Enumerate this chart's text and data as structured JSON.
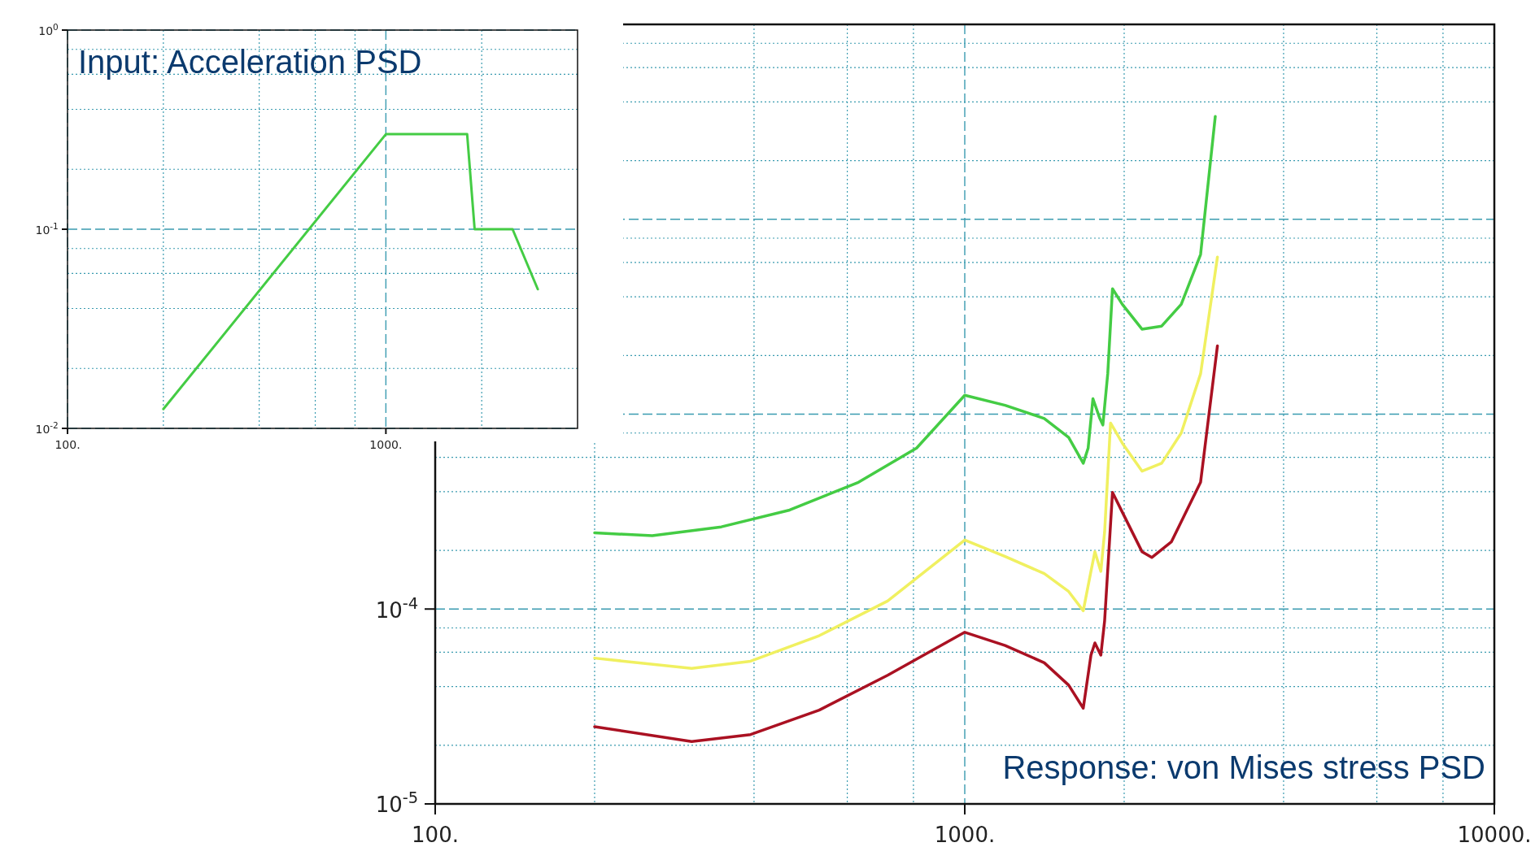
{
  "chart_data": [
    {
      "type": "line",
      "title": "Input: Acceleration PSD",
      "log": "xy",
      "grid": true,
      "xlim": [
        100,
        4000
      ],
      "ylim": [
        0.01,
        1
      ],
      "xticks": [
        {
          "value": 100,
          "label": "100."
        },
        {
          "value": 200,
          "label": null
        },
        {
          "value": 400,
          "label": null
        },
        {
          "value": 600,
          "label": null
        },
        {
          "value": 800,
          "label": null
        },
        {
          "value": 1000,
          "label": "1000."
        },
        {
          "value": 2000,
          "label": null
        }
      ],
      "yticks": [
        {
          "value": 0.01,
          "label": "10$^{-2}$"
        },
        {
          "value": 0.02,
          "label": null
        },
        {
          "value": 0.04,
          "label": null
        },
        {
          "value": 0.06,
          "label": null
        },
        {
          "value": 0.08,
          "label": null
        },
        {
          "value": 0.1,
          "label": "10$^{-1}$"
        },
        {
          "value": 0.2,
          "label": null
        },
        {
          "value": 0.4,
          "label": null
        },
        {
          "value": 0.6,
          "label": null
        },
        {
          "value": 0.8,
          "label": null
        },
        {
          "value": 1,
          "label": "10$^{0}$"
        }
      ],
      "series": [
        {
          "color": "#44cc44",
          "x": [
            200,
            1000,
            1800,
            1900,
            2500,
            3000
          ],
          "values": [
            0.0125,
            0.3,
            0.3,
            0.1,
            0.1,
            0.05
          ]
        }
      ]
    },
    {
      "type": "line",
      "title": "Response: von Mises stress PSD",
      "log": "xy",
      "grid": true,
      "xlim": [
        100,
        10000
      ],
      "ylim": [
        1e-05,
        0.1
      ],
      "xticks": [
        {
          "value": 100,
          "label": "100."
        },
        {
          "value": 200,
          "label": null
        },
        {
          "value": 400,
          "label": null
        },
        {
          "value": 600,
          "label": null
        },
        {
          "value": 800,
          "label": null
        },
        {
          "value": 1000,
          "label": "1000."
        },
        {
          "value": 2000,
          "label": null
        },
        {
          "value": 4000,
          "label": null
        },
        {
          "value": 6000,
          "label": null
        },
        {
          "value": 8000,
          "label": null
        },
        {
          "value": 10000,
          "label": "10000."
        }
      ],
      "yticks": [
        {
          "value": 1e-05,
          "label": "10$^{-5}$"
        },
        {
          "value": 2e-05,
          "label": null
        },
        {
          "value": 4e-05,
          "label": null
        },
        {
          "value": 6e-05,
          "label": null
        },
        {
          "value": 8e-05,
          "label": null
        },
        {
          "value": 0.0001,
          "label": "10$^{-4}$"
        },
        {
          "value": 0.0002,
          "label": null
        },
        {
          "value": 0.0004,
          "label": null
        },
        {
          "value": 0.0006,
          "label": null
        },
        {
          "value": 0.0008,
          "label": null
        },
        {
          "value": 0.001,
          "label": null
        },
        {
          "value": 0.002,
          "label": null
        },
        {
          "value": 0.004,
          "label": null
        },
        {
          "value": 0.006,
          "label": null
        },
        {
          "value": 0.008,
          "label": null
        },
        {
          "value": 0.01,
          "label": null
        },
        {
          "value": 0.02,
          "label": null
        },
        {
          "value": 0.04,
          "label": null
        },
        {
          "value": 0.06,
          "label": null
        },
        {
          "value": 0.08,
          "label": null
        },
        {
          "value": 0.1,
          "label": null
        }
      ],
      "series": [
        {
          "color": "#44cc44",
          "x": [
            200,
            257,
            347,
            467,
            630,
            811,
            1000,
            1192,
            1413,
            1571,
            1674,
            1710,
            1746,
            1799,
            1823,
            1862,
            1901,
            1984,
            2161,
            2354,
            2563,
            2788,
            2972
          ],
          "values": [
            0.000246,
            0.000238,
            0.000264,
            0.000322,
            0.000447,
            0.00067,
            0.00125,
            0.00111,
            0.00095,
            0.00076,
            0.00056,
            0.00067,
            0.0012,
            0.00095,
            0.00088,
            0.00161,
            0.0044,
            0.00366,
            0.00273,
            0.00283,
            0.00366,
            0.0066,
            0.0337
          ]
        },
        {
          "color": "#f0f060",
          "x": [
            200,
            305,
            394,
            531,
            715,
            1000,
            1192,
            1413,
            1571,
            1674,
            1731,
            1761,
            1807,
            1837,
            1885,
            1984,
            2161,
            2354,
            2563,
            2788,
            3000
          ],
          "values": [
            5.6e-05,
            4.96e-05,
            5.4e-05,
            7.3e-05,
            0.00011,
            0.000226,
            0.000186,
            0.000152,
            0.000123,
            9.8e-05,
            0.000156,
            0.000197,
            0.000156,
            0.000249,
            0.0009,
            0.00071,
            0.00051,
            0.00056,
            0.0008,
            0.00161,
            0.0064
          ]
        },
        {
          "color": "#aa1122",
          "x": [
            200,
            305,
            394,
            531,
            715,
            1000,
            1192,
            1413,
            1571,
            1674,
            1731,
            1761,
            1807,
            1837,
            1901,
            1984,
            2161,
            2255,
            2455,
            2788,
            3000
          ],
          "values": [
            2.49e-05,
            2.09e-05,
            2.27e-05,
            3.03e-05,
            4.57e-05,
            7.6e-05,
            6.5e-05,
            5.3e-05,
            4.07e-05,
            3.1e-05,
            5.8e-05,
            6.7e-05,
            5.8e-05,
            8.7e-05,
            0.000397,
            0.000314,
            0.000197,
            0.000184,
            0.000221,
            0.000447,
            0.00224
          ]
        }
      ]
    }
  ]
}
